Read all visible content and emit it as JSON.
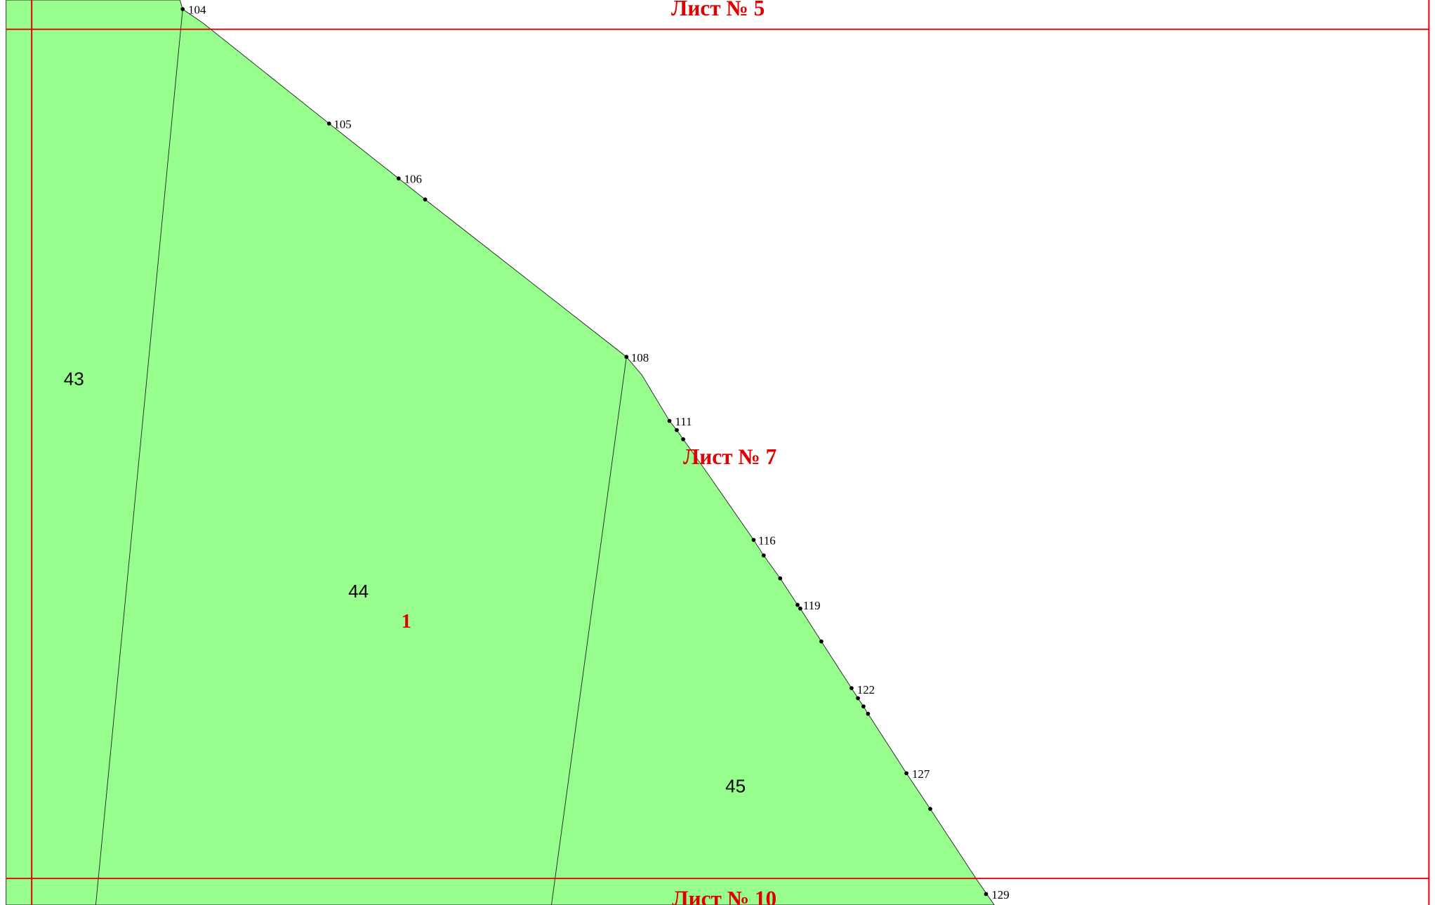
{
  "sheets": [
    "Лист № 5",
    "Лист № 7",
    "Лист № 10"
  ],
  "parcels": [
    "43",
    "44",
    "45"
  ],
  "zone": "1",
  "points": [
    "104",
    "105",
    "106",
    "108",
    "111",
    "116",
    "119",
    "122",
    "127",
    "129"
  ]
}
